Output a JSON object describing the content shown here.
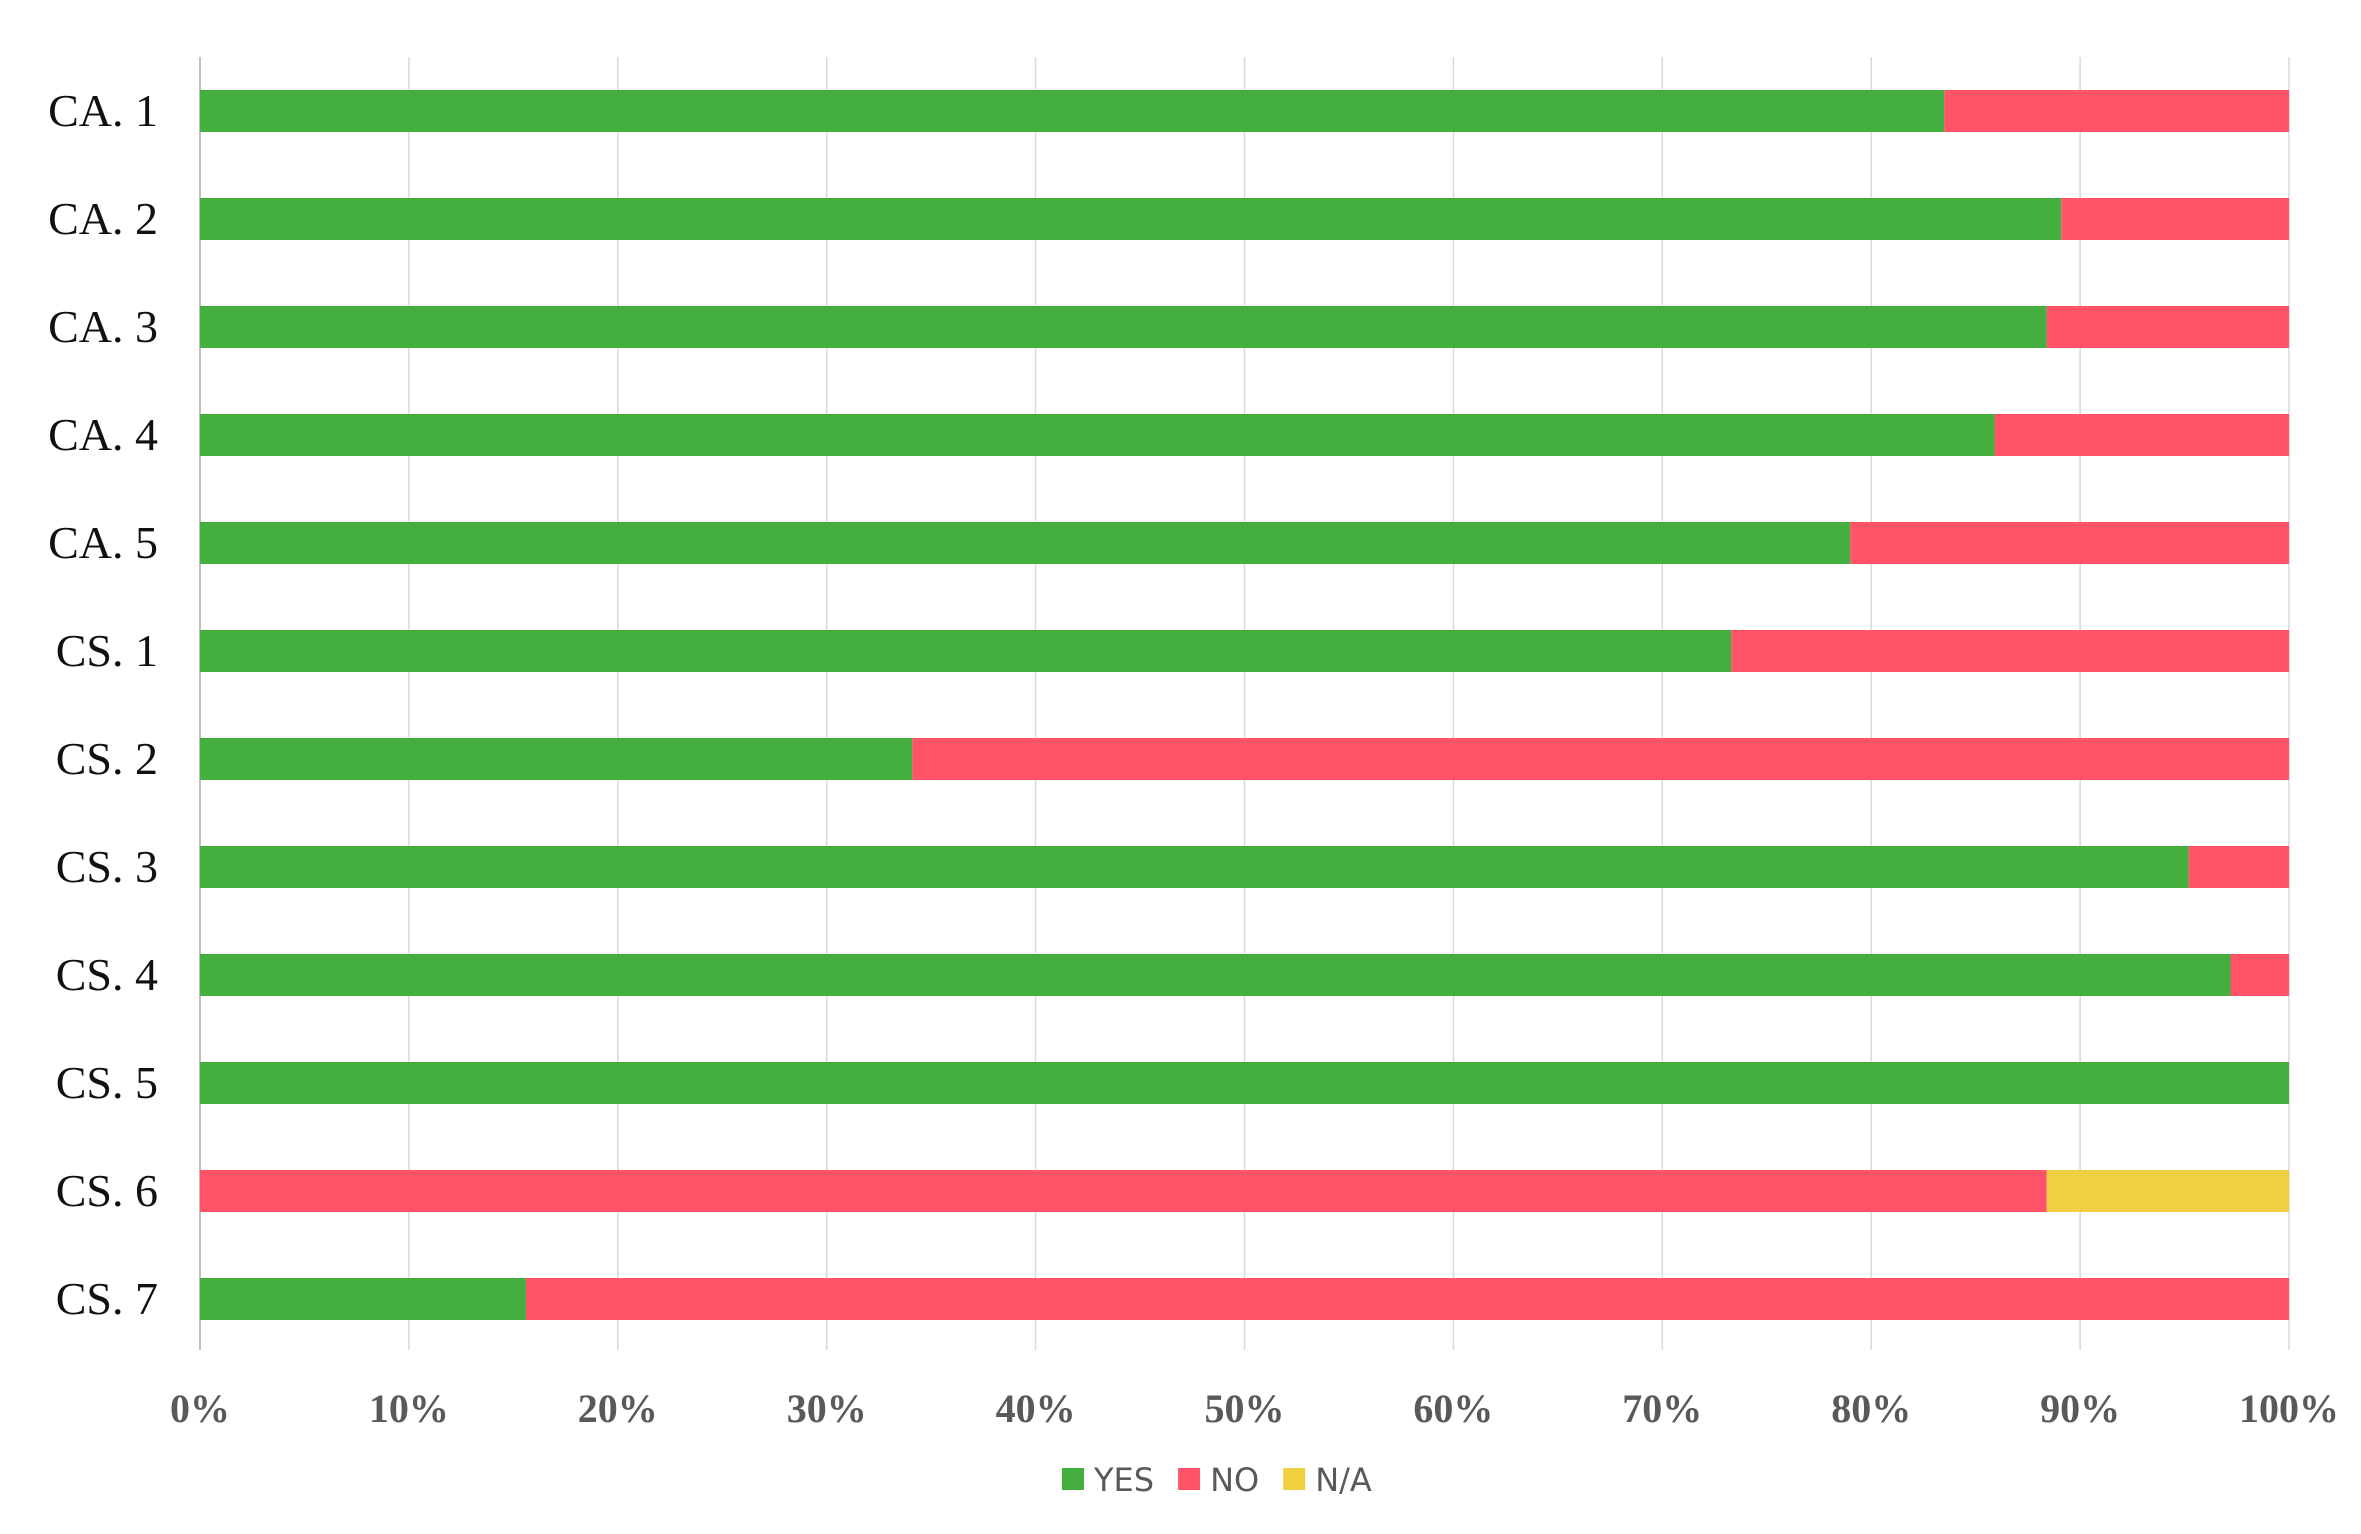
{
  "chart_data": {
    "type": "bar",
    "orientation": "horizontal",
    "stacked": "percent",
    "categories": [
      "CA. 1",
      "CA. 2",
      "CA. 3",
      "CA. 4",
      "CA. 5",
      "CS. 1",
      "CS. 2",
      "CS. 3",
      "CS. 4",
      "CS. 5",
      "CS. 6",
      "CS. 7"
    ],
    "series": [
      {
        "name": "YES",
        "color": "#44ae3f",
        "values": [
          83.5,
          89.1,
          88.4,
          85.9,
          79.0,
          73.3,
          34.1,
          95.2,
          97.2,
          100.0,
          0.0,
          15.6
        ]
      },
      {
        "name": "NO",
        "color": "#ff5467",
        "values": [
          16.5,
          10.9,
          11.6,
          14.1,
          21.0,
          26.7,
          65.9,
          4.8,
          2.8,
          0.0,
          88.4,
          84.4
        ]
      },
      {
        "name": "N/A",
        "color": "#f0d040",
        "values": [
          0,
          0,
          0,
          0,
          0,
          0,
          0,
          0,
          0,
          0,
          11.6,
          0
        ]
      }
    ],
    "xlim": [
      0,
      100
    ],
    "x_ticks": [
      "0%",
      "10%",
      "20%",
      "30%",
      "40%",
      "50%",
      "60%",
      "70%",
      "80%",
      "90%",
      "100%"
    ],
    "grid": "vertical",
    "legend_position": "bottom",
    "title": "",
    "xlabel": "",
    "ylabel": ""
  }
}
